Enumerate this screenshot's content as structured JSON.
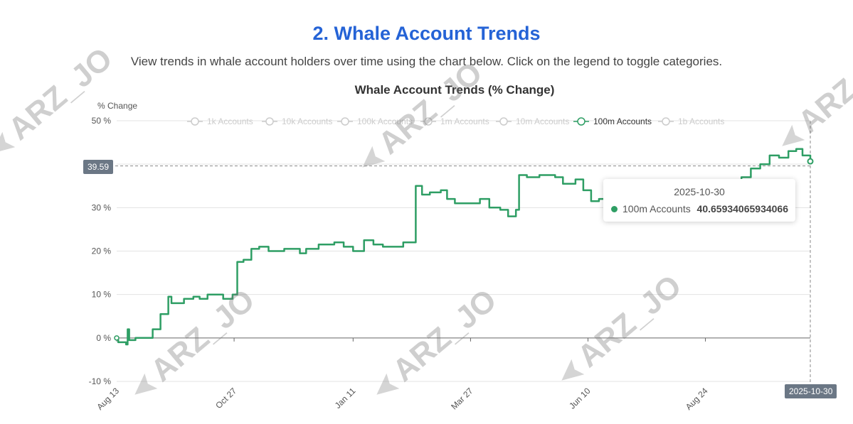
{
  "page": {
    "title": "2. Whale Account Trends",
    "description": "View trends in whale account holders over time using the chart below. Click on the legend to toggle categories."
  },
  "colors": {
    "title": "#2563d6",
    "series_active": "#2e9e64",
    "legend_inactive": "#cccccc",
    "badge": "#6b7785"
  },
  "chart_data": {
    "type": "line",
    "title": "Whale Account Trends (% Change)",
    "ylabel": "% Change",
    "xlabel": "",
    "ylim": [
      -10,
      50
    ],
    "yticks": [
      "50 %",
      "40 %",
      "30 %",
      "20 %",
      "10 %",
      "0 %",
      "-10 %"
    ],
    "xticks": [
      "Aug 13",
      "Oct 27",
      "Jan 11",
      "Mar 27",
      "Jun 10",
      "Aug 24"
    ],
    "grid": true,
    "legend_position": "top",
    "legend": [
      {
        "name": "1k Accounts",
        "active": false
      },
      {
        "name": "10k Accounts",
        "active": false
      },
      {
        "name": "100k Accounts",
        "active": false
      },
      {
        "name": "1m Accounts",
        "active": false
      },
      {
        "name": "10m Accounts",
        "active": false
      },
      {
        "name": "100m Accounts",
        "active": true
      },
      {
        "name": "1b Accounts",
        "active": false
      }
    ],
    "series": [
      {
        "name": "100m Accounts",
        "points": [
          [
            "2024-08-13",
            0
          ],
          [
            "2024-08-14",
            -1
          ],
          [
            "2024-08-19",
            -1.5
          ],
          [
            "2024-08-20",
            2
          ],
          [
            "2024-08-21",
            -0.5
          ],
          [
            "2024-08-25",
            0
          ],
          [
            "2024-09-05",
            2
          ],
          [
            "2024-09-10",
            5.5
          ],
          [
            "2024-09-15",
            9.5
          ],
          [
            "2024-09-17",
            8
          ],
          [
            "2024-09-25",
            9
          ],
          [
            "2024-10-01",
            9.5
          ],
          [
            "2024-10-05",
            9
          ],
          [
            "2024-10-10",
            10
          ],
          [
            "2024-10-20",
            9
          ],
          [
            "2024-10-26",
            10
          ],
          [
            "2024-10-29",
            17.5
          ],
          [
            "2024-11-02",
            18
          ],
          [
            "2024-11-07",
            20.5
          ],
          [
            "2024-11-12",
            21
          ],
          [
            "2024-11-18",
            20
          ],
          [
            "2024-11-28",
            20.5
          ],
          [
            "2024-12-08",
            19.5
          ],
          [
            "2024-12-12",
            20.5
          ],
          [
            "2024-12-20",
            21.5
          ],
          [
            "2024-12-30",
            22
          ],
          [
            "2025-01-05",
            21
          ],
          [
            "2025-01-11",
            20
          ],
          [
            "2025-01-18",
            22.5
          ],
          [
            "2025-01-24",
            21.5
          ],
          [
            "2025-01-30",
            21
          ],
          [
            "2025-02-10",
            21
          ],
          [
            "2025-02-12",
            22
          ],
          [
            "2025-02-18",
            22
          ],
          [
            "2025-02-20",
            35
          ],
          [
            "2025-02-24",
            33
          ],
          [
            "2025-03-01",
            33.5
          ],
          [
            "2025-03-08",
            34
          ],
          [
            "2025-03-12",
            32
          ],
          [
            "2025-03-17",
            31
          ],
          [
            "2025-03-30",
            31
          ],
          [
            "2025-04-02",
            32
          ],
          [
            "2025-04-08",
            30
          ],
          [
            "2025-04-15",
            29.5
          ],
          [
            "2025-04-20",
            28
          ],
          [
            "2025-04-25",
            29.5
          ],
          [
            "2025-04-27",
            37.5
          ],
          [
            "2025-05-02",
            37
          ],
          [
            "2025-05-10",
            37.5
          ],
          [
            "2025-05-20",
            37
          ],
          [
            "2025-05-25",
            35.5
          ],
          [
            "2025-06-02",
            36.5
          ],
          [
            "2025-06-07",
            34
          ],
          [
            "2025-06-12",
            31.5
          ],
          [
            "2025-06-17",
            32
          ],
          [
            "2025-06-22",
            31
          ],
          [
            "2025-06-26",
            31.5
          ],
          [
            "2025-06-28",
            32
          ],
          [
            "2025-07-10",
            31.5
          ],
          [
            "2025-08-05",
            31.5
          ],
          [
            "2025-09-10",
            35
          ],
          [
            "2025-09-16",
            37
          ],
          [
            "2025-09-22",
            39
          ],
          [
            "2025-09-28",
            40
          ],
          [
            "2025-10-04",
            42
          ],
          [
            "2025-10-10",
            41.5
          ],
          [
            "2025-10-16",
            43
          ],
          [
            "2025-10-21",
            43.5
          ],
          [
            "2025-10-25",
            42
          ],
          [
            "2025-10-30",
            40.65934065934066
          ]
        ]
      }
    ],
    "crosshair": {
      "y_label": "39.59",
      "x_label": "2025-10-30"
    },
    "tooltip": {
      "date": "2025-10-30",
      "series": "100m Accounts",
      "value": "40.65934065934066"
    }
  },
  "watermarks": [
    "ARZ_JO",
    "ARZ_JO",
    "ARZ_JO",
    "ARZ_JO",
    "ARZ_JO",
    "ARZ_JO"
  ]
}
